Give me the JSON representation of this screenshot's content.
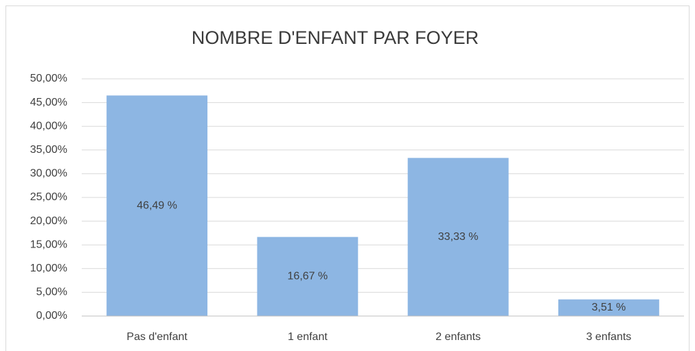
{
  "chart_data": {
    "type": "bar",
    "title": "NOMBRE D'ENFANT PAR FOYER",
    "categories": [
      "Pas d'enfant",
      "1 enfant",
      "2 enfants",
      "3 enfants"
    ],
    "values": [
      46.49,
      16.67,
      33.33,
      3.51
    ],
    "value_labels": [
      "46,49 %",
      "16,67 %",
      "33,33 %",
      "3,51 %"
    ],
    "color": "#8db6e3",
    "ylim": [
      0,
      50
    ],
    "yticks": [
      {
        "value": 0,
        "label": "0,00%"
      },
      {
        "value": 5,
        "label": "5,00%"
      },
      {
        "value": 10,
        "label": "10,00%"
      },
      {
        "value": 15,
        "label": "15,00%"
      },
      {
        "value": 20,
        "label": "20,00%"
      },
      {
        "value": 25,
        "label": "25,00%"
      },
      {
        "value": 30,
        "label": "30,00%"
      },
      {
        "value": 35,
        "label": "35,00%"
      },
      {
        "value": 40,
        "label": "40,00%"
      },
      {
        "value": 45,
        "label": "45,00%"
      },
      {
        "value": 50,
        "label": "50,00%"
      }
    ],
    "grid": true
  }
}
